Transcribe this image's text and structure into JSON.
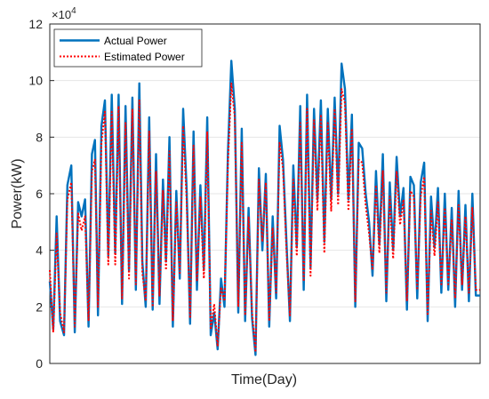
{
  "chart_data": {
    "type": "line",
    "title": "",
    "xlabel": "Time(Day)",
    "ylabel": "Power(kW)",
    "y_exponent_label": "×10",
    "y_exponent_power": "4",
    "y_scale_multiplier": 10000,
    "ylim": [
      0,
      12
    ],
    "yticks": [
      0,
      2,
      4,
      6,
      8,
      10,
      12
    ],
    "xlim": [
      0,
      100
    ],
    "grid": true,
    "legend_position": "top-left",
    "series": [
      {
        "name": "Actual Power",
        "color": "#0072bd",
        "style": "solid",
        "x": [
          0,
          0.8,
          1.6,
          2.4,
          3.3,
          4.1,
          5,
          5.8,
          6.6,
          7.4,
          8.2,
          9,
          9.8,
          10.5,
          11.2,
          12,
          12.8,
          13.6,
          14.4,
          15.2,
          16,
          16.8,
          17.6,
          18.4,
          19.2,
          20,
          20.8,
          21.5,
          22.3,
          23.1,
          23.9,
          24.7,
          25.5,
          26.3,
          27,
          27.8,
          28.6,
          29.4,
          30.2,
          31,
          31.8,
          32.6,
          33.4,
          34.2,
          35,
          35.8,
          36.6,
          37.4,
          38.2,
          39,
          39.8,
          40.6,
          41.4,
          42.2,
          43,
          43.8,
          44.6,
          45.4,
          46.2,
          47,
          47.8,
          48.6,
          49.4,
          50.2,
          51,
          51.8,
          52.6,
          53.4,
          54.2,
          55,
          55.8,
          56.6,
          57.4,
          58.2,
          59,
          59.8,
          60.6,
          61.4,
          62.2,
          63,
          63.8,
          64.6,
          65.4,
          66.2,
          67,
          67.8,
          68.6,
          69.4,
          70.2,
          71,
          71.8,
          72.6,
          73.4,
          74.2,
          75,
          75.8,
          76.6,
          77.4,
          78.2,
          79,
          79.8,
          80.6,
          81.4,
          82.2,
          83,
          83.8,
          84.6,
          85.4,
          86.2,
          87,
          87.8,
          88.6,
          89.4,
          90.2,
          91,
          91.8,
          92.6,
          93.4,
          94.2,
          95,
          95.8,
          96.6,
          97.4,
          98.2,
          99,
          100
        ],
        "values": [
          2.9,
          1.2,
          5.2,
          1.5,
          1.0,
          6.3,
          7.0,
          1.1,
          5.7,
          5.2,
          5.8,
          1.3,
          7.4,
          7.9,
          1.7,
          8.4,
          9.3,
          3.8,
          9.5,
          3.9,
          9.5,
          2.1,
          9.1,
          3.3,
          9.4,
          2.6,
          9.9,
          3.6,
          2.0,
          8.7,
          1.9,
          7.4,
          2.1,
          6.5,
          3.6,
          8.0,
          1.3,
          6.1,
          3.0,
          9.0,
          6.2,
          1.4,
          8.2,
          2.6,
          6.3,
          3.3,
          8.7,
          1.0,
          1.8,
          0.5,
          3.0,
          2.0,
          7.5,
          10.7,
          9.0,
          1.8,
          8.3,
          1.5,
          5.5,
          1.6,
          0.3,
          6.9,
          4.0,
          6.7,
          1.3,
          5.2,
          2.3,
          8.4,
          7.2,
          4.3,
          1.5,
          7.0,
          4.1,
          9.1,
          2.6,
          9.5,
          3.4,
          9.0,
          5.8,
          9.3,
          4.3,
          9.0,
          5.8,
          9.4,
          6.0,
          10.6,
          9.7,
          5.8,
          8.8,
          2.0,
          7.8,
          7.6,
          6.0,
          5.0,
          3.1,
          6.8,
          4.2,
          7.4,
          2.2,
          6.4,
          4.0,
          7.3,
          5.2,
          6.2,
          1.9,
          6.6,
          6.3,
          2.3,
          6.4,
          7.1,
          1.5,
          5.9,
          4.1,
          6.2,
          2.5,
          6.0,
          2.6,
          5.5,
          2.0,
          6.1,
          2.6,
          5.6,
          2.2,
          6.0,
          2.4,
          2.4
        ],
        "values_note": ""
      },
      {
        "name": "Estimated Power",
        "color": "#ff0000",
        "style": "dotted",
        "values_offset": [
          0.4,
          -0.1,
          -0.6,
          0.3,
          0.1,
          -0.5,
          -0.6,
          0.2,
          -0.4,
          -0.5,
          -0.6,
          0.2,
          -0.6,
          -0.7,
          0.3,
          -0.6,
          -0.4,
          -0.3,
          -0.6,
          -0.4,
          -0.4,
          0.2,
          -0.6,
          -0.3,
          -0.4,
          0.2,
          -0.6,
          -0.4,
          0.2,
          -0.5,
          0.1,
          -0.6,
          0.3,
          -0.4,
          -0.3,
          -0.5,
          0.2,
          -0.4,
          0.2,
          -0.6,
          -0.4,
          0.2,
          -0.5,
          0.3,
          -0.4,
          -0.3,
          -0.5,
          0.2,
          0.3,
          0.1,
          -0.3,
          0.2,
          -0.4,
          -0.8,
          -0.3,
          0.2,
          -0.5,
          0.2,
          -0.3,
          0.2,
          0.1,
          -0.4,
          0.3,
          -0.3,
          0.2,
          -0.4,
          0.2,
          -0.6,
          -0.3,
          -0.3,
          0.2,
          -0.5,
          -0.3,
          -0.6,
          0.3,
          -0.5,
          -0.3,
          -0.4,
          -0.4,
          -0.5,
          -0.4,
          -0.5,
          -0.4,
          -0.4,
          -0.4,
          -0.9,
          -0.5,
          -0.4,
          -0.5,
          0.2,
          -0.6,
          -0.5,
          -0.4,
          -0.4,
          0.2,
          -0.5,
          -0.3,
          -0.6,
          0.3,
          -0.5,
          -0.3,
          -0.5,
          -0.3,
          -0.4,
          0.3,
          -0.5,
          -0.4,
          0.3,
          -0.5,
          -0.5,
          0.2,
          -0.5,
          -0.3,
          -0.5,
          0.3,
          -0.5,
          0.2,
          -0.4,
          0.3,
          -0.5,
          0.2,
          -0.4,
          0.3,
          -0.5,
          0.2,
          0.2
        ]
      }
    ]
  }
}
